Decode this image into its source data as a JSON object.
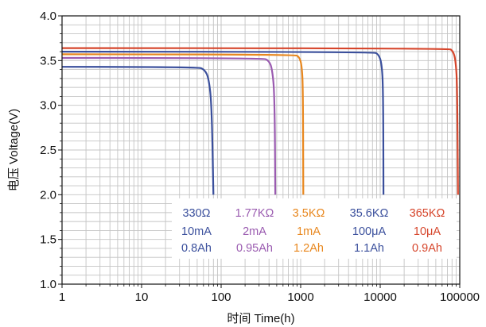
{
  "chart_data": {
    "type": "line",
    "xlabel": "时间 Time(h)",
    "ylabel": "电压 Voltage(V)",
    "xscale": "log",
    "xlim": [
      1,
      100000
    ],
    "ylim": [
      1.0,
      4.0
    ],
    "grid": true,
    "x_tick_labels": [
      "1",
      "10",
      "100",
      "1000",
      "10000",
      "100000"
    ],
    "y_tick_labels": [
      "1.0",
      "1.5",
      "2.0",
      "2.5",
      "3.0",
      "3.5",
      "4.0"
    ],
    "series": [
      {
        "key": "s330",
        "color": "#3a4f9c",
        "x": [
          1,
          50,
          62,
          70,
          76,
          80
        ],
        "y": [
          3.43,
          3.43,
          3.4,
          3.3,
          3.0,
          2.0
        ],
        "labels": [
          "330Ω",
          "10mA",
          "0.8Ah"
        ]
      },
      {
        "key": "s1770",
        "color": "#9a5bb0",
        "x": [
          1,
          330,
          400,
          440,
          470,
          480
        ],
        "y": [
          3.53,
          3.53,
          3.5,
          3.4,
          3.1,
          2.0
        ],
        "labels": [
          "1.77KΩ",
          "2mA",
          "0.95Ah"
        ]
      },
      {
        "key": "s3500",
        "color": "#e8871e",
        "x": [
          1,
          840,
          960,
          1030,
          1070,
          1080
        ],
        "y": [
          3.57,
          3.57,
          3.54,
          3.45,
          3.2,
          2.0
        ],
        "labels": [
          "3.5KΩ",
          "1mA",
          "1.2Ah"
        ]
      },
      {
        "key": "s35600",
        "color": "#3a4f9c",
        "x": [
          1,
          8200,
          9500,
          10400,
          10900,
          11000
        ],
        "y": [
          3.6,
          3.6,
          3.57,
          3.48,
          3.2,
          2.0
        ],
        "labels": [
          "35.6KΩ",
          "100μA",
          "1.1Ah"
        ]
      },
      {
        "key": "s365000",
        "color": "#d6452b",
        "x": [
          1,
          72000,
          82000,
          89000,
          93000,
          95000
        ],
        "y": [
          3.64,
          3.64,
          3.61,
          3.5,
          3.2,
          2.0
        ],
        "labels": [
          "365KΩ",
          "10μA",
          "0.9Ah"
        ]
      }
    ]
  }
}
